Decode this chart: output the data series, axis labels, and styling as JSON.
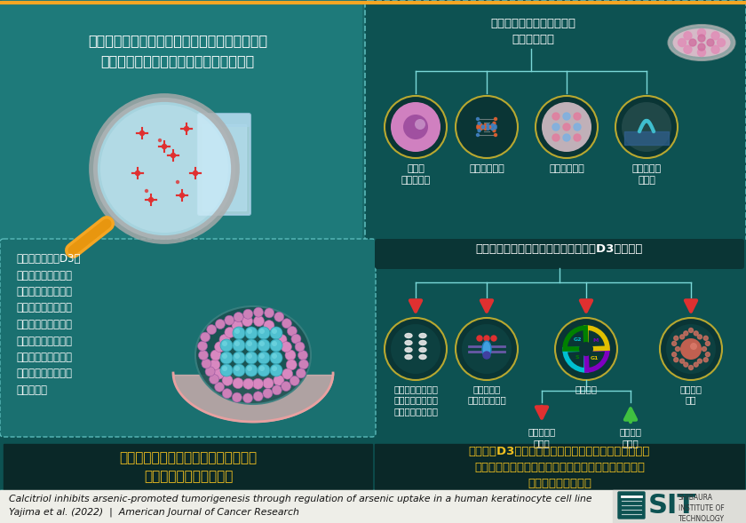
{
  "bg_color": "#1a6b6b",
  "teal_panel": "#0d5252",
  "teal_left": "#1a7070",
  "teal_bottom_main": "#0d5252",
  "panel_border": "#5ababa",
  "footer_bg": "#f0f0eb",
  "yellow_text": "#f0c020",
  "red_arrow": "#e03030",
  "green_arrow": "#40c040",
  "white": "#ffffff",
  "gold_line": "#f5a623",
  "dark_panel": "#0a3535",
  "bottom_bar_bg": "#0a2a2a",
  "title_text": "飲料水の主要な汚染物質であるヒ素は、がんの\n発生に関連する様々な分子を誘導する。",
  "top_right_title": "ヒトケラチノサイト細胞株\nヒ素曝露試験",
  "cell_labels": [
    "細胞内\nヒ素蓄積量",
    "遺伝子発現量",
    "腫瘍形成活性",
    "タンパク質\n発現量"
  ],
  "calcitriol_title": "カルシトルオール（活性化型ビタミンD3）の役割",
  "bottom_labels": [
    "アクアポリン遺伝\n子発現制御による\nヒ素取り込み抑制",
    "がん誘導性\nシグナルの抑制",
    "細胞周期",
    "腫瘍形成\n抑制"
  ],
  "sub_labels": [
    "活性化分子\nの減少",
    "抑制分子\nの増加"
  ],
  "left_text": "活性型ビタミンD3で\nあるカルシトリオー\nルは、その受容体に\n結合し、腫瘍の発生\nに関わるシグナル伝\n達経路を調節し、多\nくの癌に改善効果を\nもたらすことが知ら\nれている。",
  "bottom_left_title": "カルシトリオールの使用はヒ素による\n皮膚がん発症を抑制する",
  "bottom_right_text": "ビタミンD3を定期的に摂取（体内で活性化型に変換）\nすることで、ヒ素汚染飲用水の長期摂取による発がん\nリスクを低下させる",
  "footer_text1": "Calcitriol inhibits arsenic-promoted tumorigenesis through regulation of arsenic uptake in a human keratinocyte cell line",
  "footer_text2": "Yajima et al. (2022)  |  American Journal of Cancer Research",
  "institute_name": "SHIBAURA\nINSTITUTE OF\nTECHNOLOGY"
}
